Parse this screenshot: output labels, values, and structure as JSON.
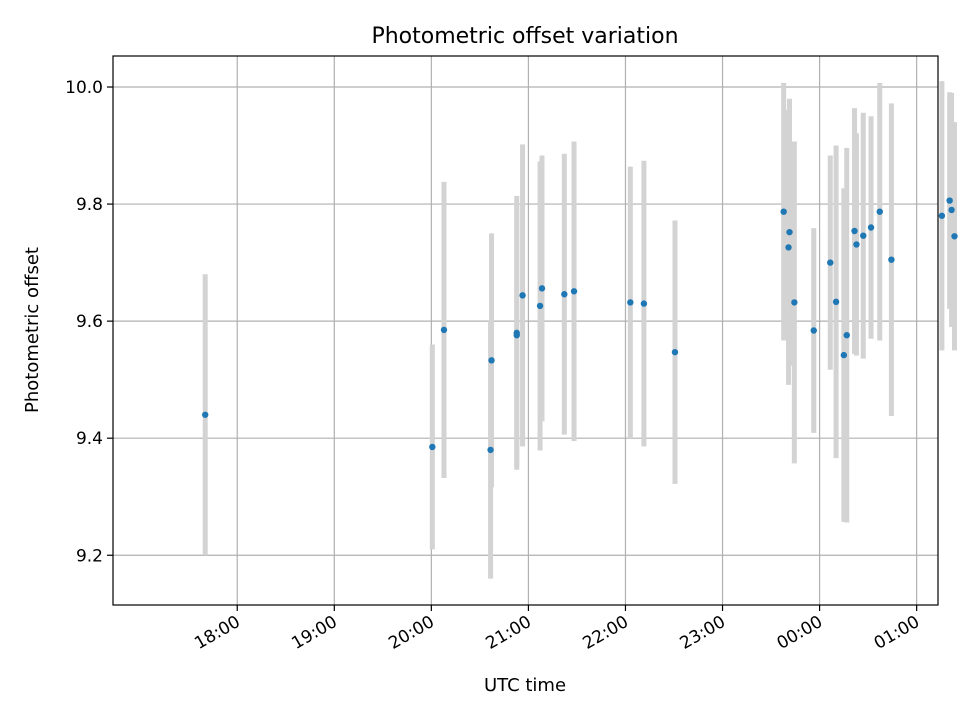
{
  "chart_data": {
    "type": "scatter",
    "title": "Photometric offset variation",
    "xlabel": "UTC time",
    "ylabel": "Photometric offset",
    "x_unit": "hours (UTC, continuing past midnight)",
    "xlim": [
      16.72,
      25.22
    ],
    "ylim": [
      9.115,
      10.053
    ],
    "x_ticks": [
      {
        "value": 18,
        "label": "18:00"
      },
      {
        "value": 19,
        "label": "19:00"
      },
      {
        "value": 20,
        "label": "20:00"
      },
      {
        "value": 21,
        "label": "21:00"
      },
      {
        "value": 22,
        "label": "22:00"
      },
      {
        "value": 23,
        "label": "23:00"
      },
      {
        "value": 24,
        "label": "00:00"
      },
      {
        "value": 25,
        "label": "01:00"
      }
    ],
    "y_ticks": [
      {
        "value": 9.2,
        "label": "9.2"
      },
      {
        "value": 9.4,
        "label": "9.4"
      },
      {
        "value": 9.6,
        "label": "9.6"
      },
      {
        "value": 9.8,
        "label": "9.8"
      },
      {
        "value": 10.0,
        "label": "10.0"
      }
    ],
    "grid": true,
    "point_color": "#1f77b4",
    "errorbar_color": "#d3d3d3",
    "points": [
      {
        "x": 17.67,
        "y": 9.44,
        "err": 0.24
      },
      {
        "x": 20.01,
        "y": 9.385,
        "err": 0.175
      },
      {
        "x": 20.13,
        "y": 9.585,
        "err": 0.253
      },
      {
        "x": 20.61,
        "y": 9.38,
        "err": 0.22
      },
      {
        "x": 20.62,
        "y": 9.533,
        "err": 0.217
      },
      {
        "x": 20.88,
        "y": 9.58,
        "err": 0.234
      },
      {
        "x": 20.88,
        "y": 9.576,
        "err": 0.225
      },
      {
        "x": 20.94,
        "y": 9.644,
        "err": 0.258
      },
      {
        "x": 21.12,
        "y": 9.626,
        "err": 0.247
      },
      {
        "x": 21.14,
        "y": 9.656,
        "err": 0.227
      },
      {
        "x": 21.37,
        "y": 9.646,
        "err": 0.24
      },
      {
        "x": 21.47,
        "y": 9.651,
        "err": 0.256
      },
      {
        "x": 22.05,
        "y": 9.632,
        "err": 0.232
      },
      {
        "x": 22.19,
        "y": 9.63,
        "err": 0.244
      },
      {
        "x": 22.51,
        "y": 9.547,
        "err": 0.225
      },
      {
        "x": 23.63,
        "y": 9.787,
        "err": 0.22
      },
      {
        "x": 23.68,
        "y": 9.726,
        "err": 0.235
      },
      {
        "x": 23.69,
        "y": 9.752,
        "err": 0.228
      },
      {
        "x": 23.74,
        "y": 9.632,
        "err": 0.275
      },
      {
        "x": 23.94,
        "y": 9.584,
        "err": 0.175
      },
      {
        "x": 24.11,
        "y": 9.7,
        "err": 0.183
      },
      {
        "x": 24.17,
        "y": 9.633,
        "err": 0.267
      },
      {
        "x": 24.25,
        "y": 9.542,
        "err": 0.285
      },
      {
        "x": 24.28,
        "y": 9.576,
        "err": 0.32
      },
      {
        "x": 24.36,
        "y": 9.754,
        "err": 0.21
      },
      {
        "x": 24.38,
        "y": 9.731,
        "err": 0.19
      },
      {
        "x": 24.45,
        "y": 9.746,
        "err": 0.21
      },
      {
        "x": 24.53,
        "y": 9.76,
        "err": 0.19
      },
      {
        "x": 24.62,
        "y": 9.787,
        "err": 0.22
      },
      {
        "x": 24.74,
        "y": 9.705,
        "err": 0.267
      },
      {
        "x": 25.26,
        "y": 9.78,
        "err": 0.23
      },
      {
        "x": 25.34,
        "y": 9.806,
        "err": 0.185
      },
      {
        "x": 25.36,
        "y": 9.79,
        "err": 0.2
      },
      {
        "x": 25.39,
        "y": 9.745,
        "err": 0.195
      }
    ]
  }
}
